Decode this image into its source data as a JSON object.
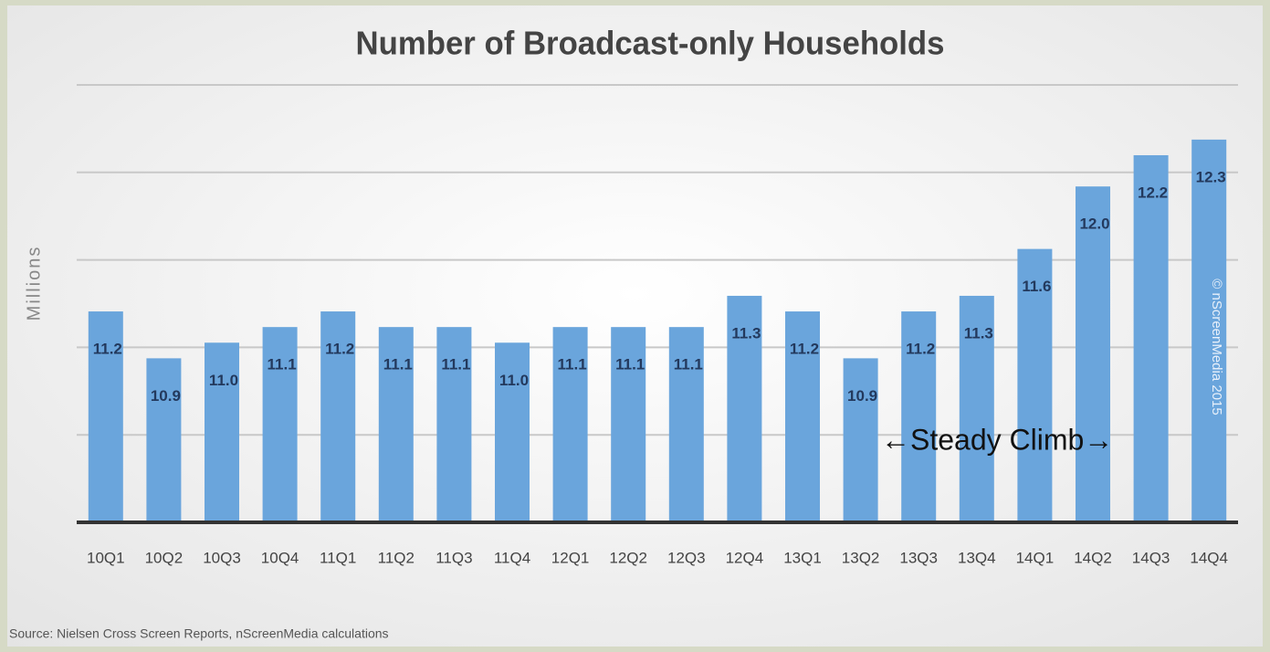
{
  "chart_data": {
    "type": "bar",
    "title": "Number of Broadcast-only Households",
    "y_label": "Millions",
    "categories": [
      "10Q1",
      "10Q2",
      "10Q3",
      "10Q4",
      "11Q1",
      "11Q2",
      "11Q3",
      "11Q4",
      "12Q1",
      "12Q2",
      "12Q3",
      "12Q4",
      "13Q1",
      "13Q2",
      "13Q3",
      "13Q4",
      "14Q1",
      "14Q2",
      "14Q3",
      "14Q4"
    ],
    "values": [
      11.2,
      10.9,
      11.0,
      11.1,
      11.2,
      11.1,
      11.1,
      11.0,
      11.1,
      11.1,
      11.1,
      11.3,
      11.2,
      10.9,
      11.2,
      11.3,
      11.6,
      12.0,
      12.2,
      12.3
    ],
    "value_labels": [
      "11.2",
      "10.9",
      "11.0",
      "11.1",
      "11.2",
      "11.1",
      "11.1",
      "11.0",
      "11.1",
      "11.1",
      "11.1",
      "11.3",
      "11.2",
      "10.9",
      "11.2",
      "11.3",
      "11.6",
      "12.0",
      "12.2",
      "12.3"
    ],
    "color": "#6aa5dc",
    "ylim": [
      9.85,
      12.65
    ],
    "yticks": [
      10.41,
      10.97,
      11.53,
      12.09,
      12.65
    ],
    "grid": true,
    "annotation": "←Steady Climb→",
    "watermark": "© nScreenMedia 2015",
    "source": "Source: Nielsen Cross Screen Reports, nScreenMedia calculations"
  }
}
